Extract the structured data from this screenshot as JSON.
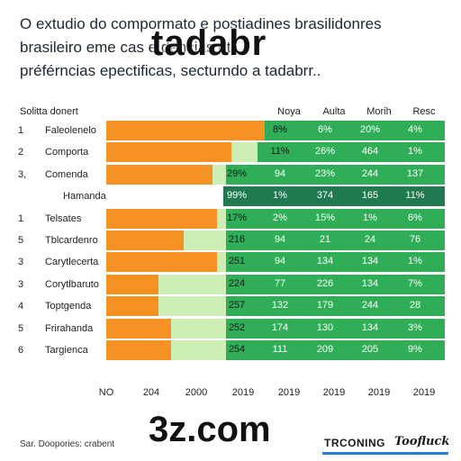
{
  "title_lines": [
    "O extudio do compormato e postiadines brasilidonres",
    "brasileiro eme cas      e    dencias et",
    "préférncias epectificas, secturndo a tadabrr.."
  ],
  "overlay_top": "tadabr",
  "overlay_bottom": "3z.com",
  "legend_header": "Solitta donert",
  "column_headers": [
    "Noya",
    "Aulta",
    "Morih",
    "Resc"
  ],
  "x_ticks": [
    "NO",
    "204",
    "2000",
    "2019",
    "2019",
    "2019",
    "2019",
    "2019"
  ],
  "source": "Sar. Doopories: crabent",
  "brand1": "TRCONING",
  "brand2": "Toofluck",
  "colors": {
    "orange": "#f59223",
    "light_green": "#cdeeb4",
    "green": "#2fae57",
    "dark_green": "#1f7a4f"
  },
  "chart_data": {
    "type": "bar",
    "rows": [
      {
        "num": "1",
        "label": "Faleolenelo",
        "orange": 1.0,
        "light": 1.0,
        "first": "",
        "cells": [
          "8%",
          "6%",
          "20%",
          "4%"
        ]
      },
      {
        "num": "2",
        "label": "Comporta",
        "orange": 0.79,
        "light": 1.0,
        "first": "",
        "cells": [
          "11%",
          "26%",
          "464",
          "1%"
        ]
      },
      {
        "num": "3,",
        "label": "Comenda",
        "orange": 0.67,
        "light": 0.79,
        "first": "29%",
        "cells": [
          "94",
          "23%",
          "244",
          "137"
        ]
      },
      {
        "num": "",
        "label": "Hamanda",
        "orange": 0,
        "light": 0,
        "first": "99%",
        "cells": [
          "1%",
          "374",
          "165",
          "11%"
        ],
        "highlight": true
      },
      {
        "num": "1",
        "label": "Telsates",
        "orange": 0.7,
        "light": 0.79,
        "first": "17%",
        "cells": [
          "2%",
          "15%",
          "1%",
          "6%"
        ]
      },
      {
        "num": "5",
        "label": "Tblcardenro",
        "orange": 0.49,
        "light": 0.79,
        "first": "216",
        "cells": [
          "94",
          "21",
          "24",
          "76"
        ]
      },
      {
        "num": "3",
        "label": "Carytlecerta",
        "orange": 0.7,
        "light": 0.79,
        "first": "251",
        "cells": [
          "94",
          "134",
          "134",
          "1%"
        ]
      },
      {
        "num": "3",
        "label": "Corytlbaruto",
        "orange": 0.33,
        "light": 0.79,
        "first": "224",
        "cells": [
          "77",
          "226",
          "134",
          "7%"
        ]
      },
      {
        "num": "4",
        "label": "Toptgenda",
        "orange": 0.33,
        "light": 0.79,
        "first": "257",
        "cells": [
          "132",
          "179",
          "244",
          "28"
        ]
      },
      {
        "num": "5",
        "label": "Frirahanda",
        "orange": 0.41,
        "light": 0.79,
        "first": "252",
        "cells": [
          "174",
          "130",
          "134",
          "3%"
        ]
      },
      {
        "num": "6",
        "label": "Targienca",
        "orange": 0.41,
        "light": 0.79,
        "first": "254",
        "cells": [
          "111",
          "209",
          "205",
          "9%"
        ]
      }
    ]
  }
}
